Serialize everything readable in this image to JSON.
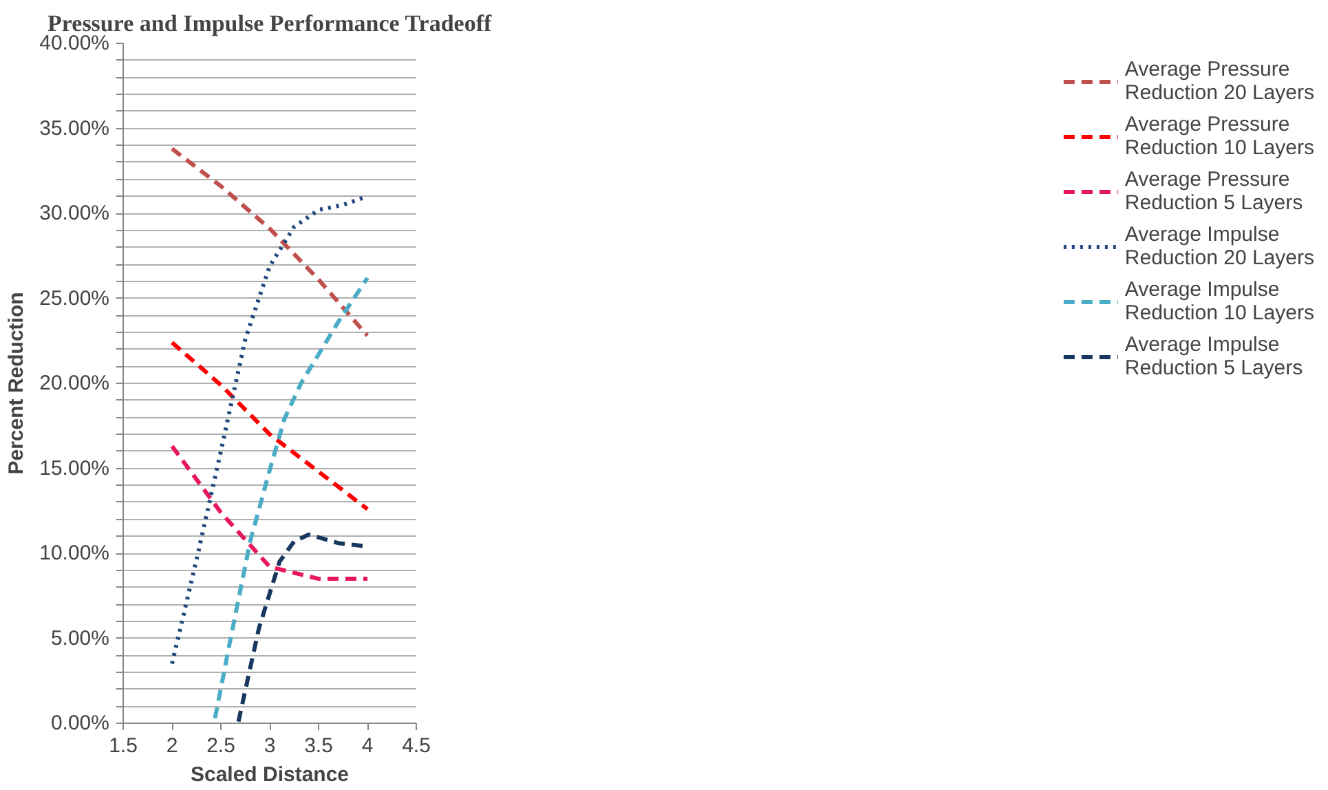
{
  "chart_data": {
    "type": "line",
    "title": "Pressure and Impulse Performance Tradeoff",
    "xlabel": "Scaled Distance",
    "ylabel": "Percent Reduction",
    "xlim": [
      1.5,
      4.5
    ],
    "xticks": [
      1.5,
      2,
      2.5,
      3,
      3.5,
      4,
      4.5
    ],
    "ylim": [
      0,
      40
    ],
    "yticks": [
      {
        "value": 0,
        "label": "0.00%"
      },
      {
        "value": 1,
        "label": null
      },
      {
        "value": 2,
        "label": null
      },
      {
        "value": 3,
        "label": null
      },
      {
        "value": 4,
        "label": null
      },
      {
        "value": 5,
        "label": "5.00%"
      },
      {
        "value": 6,
        "label": null
      },
      {
        "value": 7,
        "label": null
      },
      {
        "value": 8,
        "label": null
      },
      {
        "value": 9,
        "label": null
      },
      {
        "value": 10,
        "label": "10.00%"
      },
      {
        "value": 11,
        "label": null
      },
      {
        "value": 12,
        "label": null
      },
      {
        "value": 13,
        "label": null
      },
      {
        "value": 14,
        "label": null
      },
      {
        "value": 15,
        "label": "15.00%"
      },
      {
        "value": 16,
        "label": null
      },
      {
        "value": 17,
        "label": null
      },
      {
        "value": 18,
        "label": null
      },
      {
        "value": 19,
        "label": null
      },
      {
        "value": 20,
        "label": "20.00%"
      },
      {
        "value": 21,
        "label": null
      },
      {
        "value": 22,
        "label": null
      },
      {
        "value": 23,
        "label": null
      },
      {
        "value": 24,
        "label": null
      },
      {
        "value": 25,
        "label": "25.00%"
      },
      {
        "value": 26,
        "label": null
      },
      {
        "value": 27,
        "label": null
      },
      {
        "value": 28,
        "label": null
      },
      {
        "value": 29,
        "label": null
      },
      {
        "value": 30,
        "label": "30.00%"
      },
      {
        "value": 31,
        "label": null
      },
      {
        "value": 32,
        "label": null
      },
      {
        "value": 33,
        "label": null
      },
      {
        "value": 34,
        "label": null
      },
      {
        "value": 35,
        "label": "35.00%"
      },
      {
        "value": 36,
        "label": null
      },
      {
        "value": 37,
        "label": null
      },
      {
        "value": 38,
        "label": null
      },
      {
        "value": 39,
        "label": null
      },
      {
        "value": 40,
        "label": "40.00%"
      }
    ],
    "grid": "y",
    "legend": "right",
    "marker": "none",
    "series": [
      {
        "name": "Average Pressure Reduction 20 Layers",
        "color": "#c0504d",
        "line_style": "dashed",
        "x": [
          2,
          2.5,
          3,
          3.15,
          3.5,
          4
        ],
        "values": [
          33.8,
          31.6,
          29.1,
          28.2,
          26.1,
          22.8
        ]
      },
      {
        "name": "Average Pressure Reduction 10 Layers",
        "color": "#ff0000",
        "line_style": "dashed",
        "x": [
          2,
          2.5,
          3,
          3.5,
          4
        ],
        "values": [
          22.4,
          19.9,
          17.0,
          14.8,
          12.6
        ]
      },
      {
        "name": "Average Pressure Reduction 5 Layers",
        "color": "#e8175d",
        "line_style": "dashed",
        "x": [
          2,
          2.5,
          3,
          3.5,
          4
        ],
        "values": [
          16.3,
          12.4,
          9.2,
          8.5,
          8.5
        ]
      },
      {
        "name": "Average Impulse Reduction 20 Layers",
        "color": "#1f497d",
        "line_style": "dotted",
        "x": [
          2,
          2.25,
          2.5,
          2.75,
          3,
          3.25,
          3.5,
          3.75,
          4
        ],
        "values": [
          3.5,
          9.6,
          16.0,
          22.6,
          26.9,
          29.2,
          30.2,
          30.5,
          31.0
        ]
      },
      {
        "name": "Average Impulse Reduction 10 Layers",
        "color": "#4bacc6",
        "line_style": "dashed",
        "x": [
          2.44,
          2.6,
          2.8,
          3,
          3.15,
          3.32,
          3.5,
          3.7,
          4
        ],
        "values": [
          0.3,
          5.0,
          10.7,
          14.9,
          17.9,
          20.0,
          21.7,
          23.6,
          26.2
        ]
      },
      {
        "name": "Average Impulse Reduction 5 Layers",
        "color": "#17375e",
        "line_style": "dashed",
        "x": [
          2.68,
          2.89,
          3.1,
          3.25,
          3.4,
          3.7,
          4
        ],
        "values": [
          0.1,
          5.6,
          9.5,
          10.7,
          11.1,
          10.6,
          10.4
        ]
      }
    ]
  }
}
